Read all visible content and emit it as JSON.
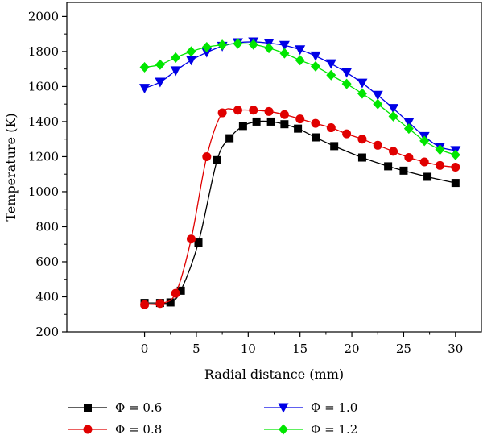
{
  "chart_data": {
    "type": "line",
    "xlabel": "Radial distance (mm)",
    "ylabel": "Temperature (K)",
    "xlim": [
      -7.5,
      32.5
    ],
    "ylim": [
      200,
      2080
    ],
    "xticks": [
      0,
      5,
      10,
      15,
      20,
      25,
      30
    ],
    "yticks": [
      200,
      400,
      600,
      800,
      1000,
      1200,
      1400,
      1600,
      1800,
      2000
    ],
    "grid": false,
    "legend_position": "bottom",
    "series": [
      {
        "name": "Φ = 0.6",
        "color": "#000000",
        "marker": "square",
        "x": [
          0,
          1.5,
          2.5,
          3.5,
          5.2,
          7.0,
          8.2,
          9.5,
          10.8,
          12.2,
          13.5,
          14.8,
          16.5,
          18.3,
          21.0,
          23.5,
          25.0,
          27.3,
          30.0
        ],
        "y": [
          365,
          365,
          368,
          435,
          710,
          1180,
          1305,
          1375,
          1400,
          1400,
          1385,
          1360,
          1310,
          1260,
          1195,
          1145,
          1120,
          1085,
          1050
        ]
      },
      {
        "name": "Φ = 0.8",
        "color": "#e00000",
        "marker": "circle",
        "x": [
          0,
          1.5,
          3.0,
          4.5,
          6.0,
          7.5,
          9.0,
          10.5,
          12.0,
          13.5,
          15.0,
          16.5,
          18.0,
          19.5,
          21.0,
          22.5,
          24.0,
          25.5,
          27.0,
          28.5,
          30.0
        ],
        "y": [
          355,
          362,
          420,
          730,
          1200,
          1450,
          1465,
          1465,
          1458,
          1440,
          1415,
          1390,
          1365,
          1330,
          1300,
          1265,
          1230,
          1195,
          1170,
          1150,
          1140
        ]
      },
      {
        "name": "Φ = 1.0",
        "color": "#0000e6",
        "marker": "triangle-down",
        "x": [
          0,
          1.5,
          3.0,
          4.5,
          6.0,
          7.5,
          9.0,
          10.5,
          12.0,
          13.5,
          15.0,
          16.5,
          18.0,
          19.5,
          21.0,
          22.5,
          24.0,
          25.5,
          27.0,
          28.5,
          30.0
        ],
        "y": [
          1590,
          1625,
          1690,
          1750,
          1795,
          1830,
          1850,
          1855,
          1848,
          1835,
          1810,
          1775,
          1730,
          1680,
          1620,
          1550,
          1475,
          1395,
          1315,
          1255,
          1235
        ]
      },
      {
        "name": "Φ = 1.2",
        "color": "#00e600",
        "marker": "diamond",
        "x": [
          0,
          1.5,
          3.0,
          4.5,
          6.0,
          7.5,
          9.0,
          10.5,
          12.0,
          13.5,
          15.0,
          16.5,
          18.0,
          19.5,
          21.0,
          22.5,
          24.0,
          25.5,
          27.0,
          28.5,
          30.0
        ],
        "y": [
          1710,
          1725,
          1765,
          1800,
          1825,
          1838,
          1845,
          1840,
          1820,
          1790,
          1750,
          1715,
          1665,
          1615,
          1560,
          1500,
          1430,
          1360,
          1290,
          1240,
          1210
        ]
      }
    ]
  }
}
